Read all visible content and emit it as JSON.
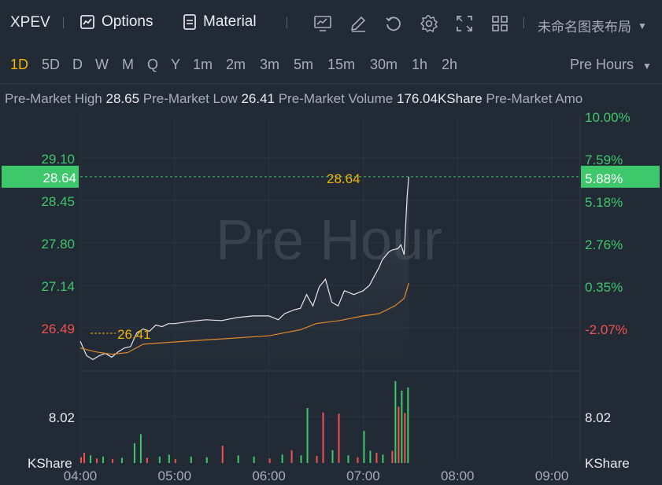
{
  "toolbar": {
    "symbol": "XPEV",
    "options_label": "Options",
    "material_label": "Material",
    "layout_label": "未命名图表布局",
    "icons": [
      "chart-icon",
      "edit-icon",
      "refresh-icon",
      "settings-icon",
      "fullscreen-icon",
      "grid-icon"
    ]
  },
  "timeframes": [
    "1D",
    "5D",
    "D",
    "W",
    "M",
    "Q",
    "Y",
    "1m",
    "2m",
    "3m",
    "5m",
    "15m",
    "30m",
    "1h",
    "2h"
  ],
  "active_timeframe": "1D",
  "session_label": "Pre Hours",
  "stats": [
    {
      "label": "Pre-Market High",
      "value": "28.65"
    },
    {
      "label": "Pre-Market Low",
      "value": "26.41"
    },
    {
      "label": "Pre-Market Volume",
      "value": "176.04KShare"
    },
    {
      "label": "Pre-Market Amo",
      "value": ""
    }
  ],
  "watermark": "Pre Hour",
  "colors": {
    "up": "#3ec76b",
    "down": "#f0524f",
    "price_line": "#e4e6ea",
    "avg_line": "#e08a2b",
    "highlight": "#3ec76b",
    "label_yellow": "#f1b500"
  },
  "chart_data": {
    "type": "line",
    "price_axis_left": [
      "29.10",
      "28.45",
      "27.80",
      "27.14",
      "26.49"
    ],
    "price_axis_right": [
      "10.00%",
      "7.59%",
      "5.18%",
      "2.76%",
      "0.35%",
      "-2.07%"
    ],
    "current_price": "28.64",
    "current_pct": "5.88%",
    "high_marker": "28.64",
    "low_marker": "26.41",
    "volume_axis": "8.02",
    "volume_unit": "KShare",
    "x_ticks": [
      "04:00",
      "05:00",
      "06:00",
      "07:00",
      "08:00",
      "09:00"
    ],
    "ylim": [
      26.1,
      29.44
    ],
    "price_series": [
      [
        "04:00",
        26.49
      ],
      [
        "04:04",
        26.3
      ],
      [
        "04:08",
        26.25
      ],
      [
        "04:12",
        26.3
      ],
      [
        "04:16",
        26.33
      ],
      [
        "04:20",
        26.28
      ],
      [
        "04:24",
        26.35
      ],
      [
        "04:28",
        26.4
      ],
      [
        "04:32",
        26.42
      ],
      [
        "04:36",
        26.6
      ],
      [
        "04:40",
        26.65
      ],
      [
        "04:44",
        26.62
      ],
      [
        "04:48",
        26.7
      ],
      [
        "04:52",
        26.68
      ],
      [
        "04:56",
        26.72
      ],
      [
        "05:00",
        26.72
      ],
      [
        "05:10",
        26.75
      ],
      [
        "05:20",
        26.77
      ],
      [
        "05:30",
        26.76
      ],
      [
        "05:40",
        26.8
      ],
      [
        "05:50",
        26.82
      ],
      [
        "06:00",
        26.82
      ],
      [
        "06:06",
        26.77
      ],
      [
        "06:10",
        26.85
      ],
      [
        "06:16",
        26.9
      ],
      [
        "06:20",
        26.92
      ],
      [
        "06:24",
        27.1
      ],
      [
        "06:28",
        26.95
      ],
      [
        "06:32",
        27.2
      ],
      [
        "06:36",
        27.3
      ],
      [
        "06:40",
        27.0
      ],
      [
        "06:44",
        26.95
      ],
      [
        "06:48",
        27.15
      ],
      [
        "06:54",
        27.1
      ],
      [
        "07:00",
        27.15
      ],
      [
        "07:04",
        27.22
      ],
      [
        "07:06",
        27.3
      ],
      [
        "07:10",
        27.45
      ],
      [
        "07:12",
        27.55
      ],
      [
        "07:16",
        27.65
      ],
      [
        "07:18",
        27.68
      ],
      [
        "07:22",
        27.7
      ],
      [
        "07:24",
        27.75
      ],
      [
        "07:26",
        27.62
      ],
      [
        "07:28",
        28.4
      ],
      [
        "07:29",
        28.64
      ]
    ],
    "avg_series": [
      [
        "04:00",
        26.4
      ],
      [
        "04:10",
        26.35
      ],
      [
        "04:20",
        26.32
      ],
      [
        "04:30",
        26.34
      ],
      [
        "04:40",
        26.45
      ],
      [
        "05:00",
        26.48
      ],
      [
        "05:30",
        26.52
      ],
      [
        "06:00",
        26.56
      ],
      [
        "06:10",
        26.6
      ],
      [
        "06:20",
        26.64
      ],
      [
        "06:30",
        26.72
      ],
      [
        "06:45",
        26.76
      ],
      [
        "07:00",
        26.82
      ],
      [
        "07:10",
        26.85
      ],
      [
        "07:20",
        26.95
      ],
      [
        "07:26",
        27.05
      ],
      [
        "07:29",
        27.25
      ]
    ],
    "volume_bars": [
      [
        "04:00",
        0.9,
        "down"
      ],
      [
        "04:02",
        1.6,
        "down"
      ],
      [
        "04:06",
        1.2,
        "up"
      ],
      [
        "04:10",
        0.7,
        "down"
      ],
      [
        "04:14",
        1.0,
        "up"
      ],
      [
        "04:20",
        0.6,
        "down"
      ],
      [
        "04:26",
        0.8,
        "up"
      ],
      [
        "04:34",
        3.1,
        "up"
      ],
      [
        "04:38",
        4.5,
        "up"
      ],
      [
        "04:42",
        0.8,
        "down"
      ],
      [
        "04:50",
        1.0,
        "up"
      ],
      [
        "04:56",
        1.3,
        "up"
      ],
      [
        "05:00",
        0.6,
        "down"
      ],
      [
        "05:10",
        1.0,
        "up"
      ],
      [
        "05:20",
        0.9,
        "up"
      ],
      [
        "05:30",
        2.7,
        "down"
      ],
      [
        "05:40",
        1.2,
        "up"
      ],
      [
        "05:50",
        1.0,
        "up"
      ],
      [
        "06:00",
        0.7,
        "down"
      ],
      [
        "06:08",
        1.3,
        "up"
      ],
      [
        "06:14",
        2.0,
        "down"
      ],
      [
        "06:20",
        1.2,
        "up"
      ],
      [
        "06:24",
        8.6,
        "up"
      ],
      [
        "06:30",
        1.1,
        "down"
      ],
      [
        "06:34",
        7.9,
        "down"
      ],
      [
        "06:40",
        2.0,
        "up"
      ],
      [
        "06:44",
        7.7,
        "down"
      ],
      [
        "06:50",
        1.2,
        "up"
      ],
      [
        "06:56",
        0.9,
        "down"
      ],
      [
        "07:00",
        5.0,
        "up"
      ],
      [
        "07:04",
        1.9,
        "up"
      ],
      [
        "07:08",
        1.6,
        "down"
      ],
      [
        "07:12",
        1.3,
        "up"
      ],
      [
        "07:18",
        1.9,
        "down"
      ],
      [
        "07:20",
        12.8,
        "up"
      ],
      [
        "07:22",
        8.8,
        "down"
      ],
      [
        "07:24",
        11.3,
        "up"
      ],
      [
        "07:26",
        7.8,
        "down"
      ],
      [
        "07:28",
        11.8,
        "up"
      ]
    ]
  }
}
